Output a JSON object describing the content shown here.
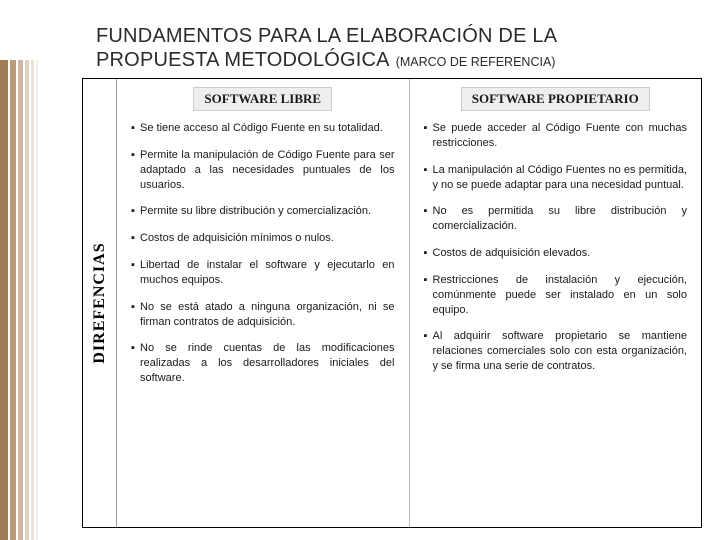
{
  "title": {
    "line1": "FUNDAMENTOS PARA LA ELABORACIÓN DE LA",
    "line2": "PROPUESTA METODOLÓGICA",
    "paren": "(MARCO DE REFERENCIA)"
  },
  "sidebar_label": "DIREFENCIAS",
  "columns": {
    "left": {
      "header": "SOFTWARE LIBRE",
      "items": [
        "Se tiene acceso al Código Fuente en su totalidad.",
        "Permite la manipulación de Código Fuente para ser adaptado a las necesidades puntuales de los usuarios.",
        "Permite su libre distribución y comercialización.",
        "Costos de adquisición mínimos o nulos.",
        "Libertad de instalar el software y ejecutarlo en muchos equipos.",
        "No se está atado a ninguna organización, ni se firman contratos de adquisición.",
        "No se rinde cuentas de las modificaciones realizadas a los desarrolladores iniciales del software."
      ]
    },
    "right": {
      "header": "SOFTWARE PROPIETARIO",
      "items": [
        "Se puede acceder al Código Fuente con muchas restricciones.",
        "La manipulación al Código Fuentes no es permitida, y no se puede adaptar para una necesidad puntual.",
        "No es permitida su libre distribución y comercialización.",
        "Costos de adquisición elevados.",
        "Restricciones de instalación y ejecución, comúnmente puede ser instalado en un solo equipo.",
        "Al adquirir software propietario se mantiene relaciones comerciales solo con esta organización, y se firma una serie de contratos."
      ]
    }
  },
  "bullet": "▪",
  "colors": {
    "border": "#000000",
    "header_bg": "#eeeeee",
    "header_border": "#cccccc",
    "text": "#1a1a1a",
    "stripe_palette": [
      "#a07d57",
      "#b99a7a",
      "#cdb89f",
      "#ddd0bd",
      "#eae2d7",
      "#f3eee7"
    ]
  },
  "typography": {
    "title_fontsize": 20,
    "paren_fontsize": 12.5,
    "sidebar_fontsize": 16,
    "header_fontsize": 13,
    "body_fontsize": 11
  }
}
